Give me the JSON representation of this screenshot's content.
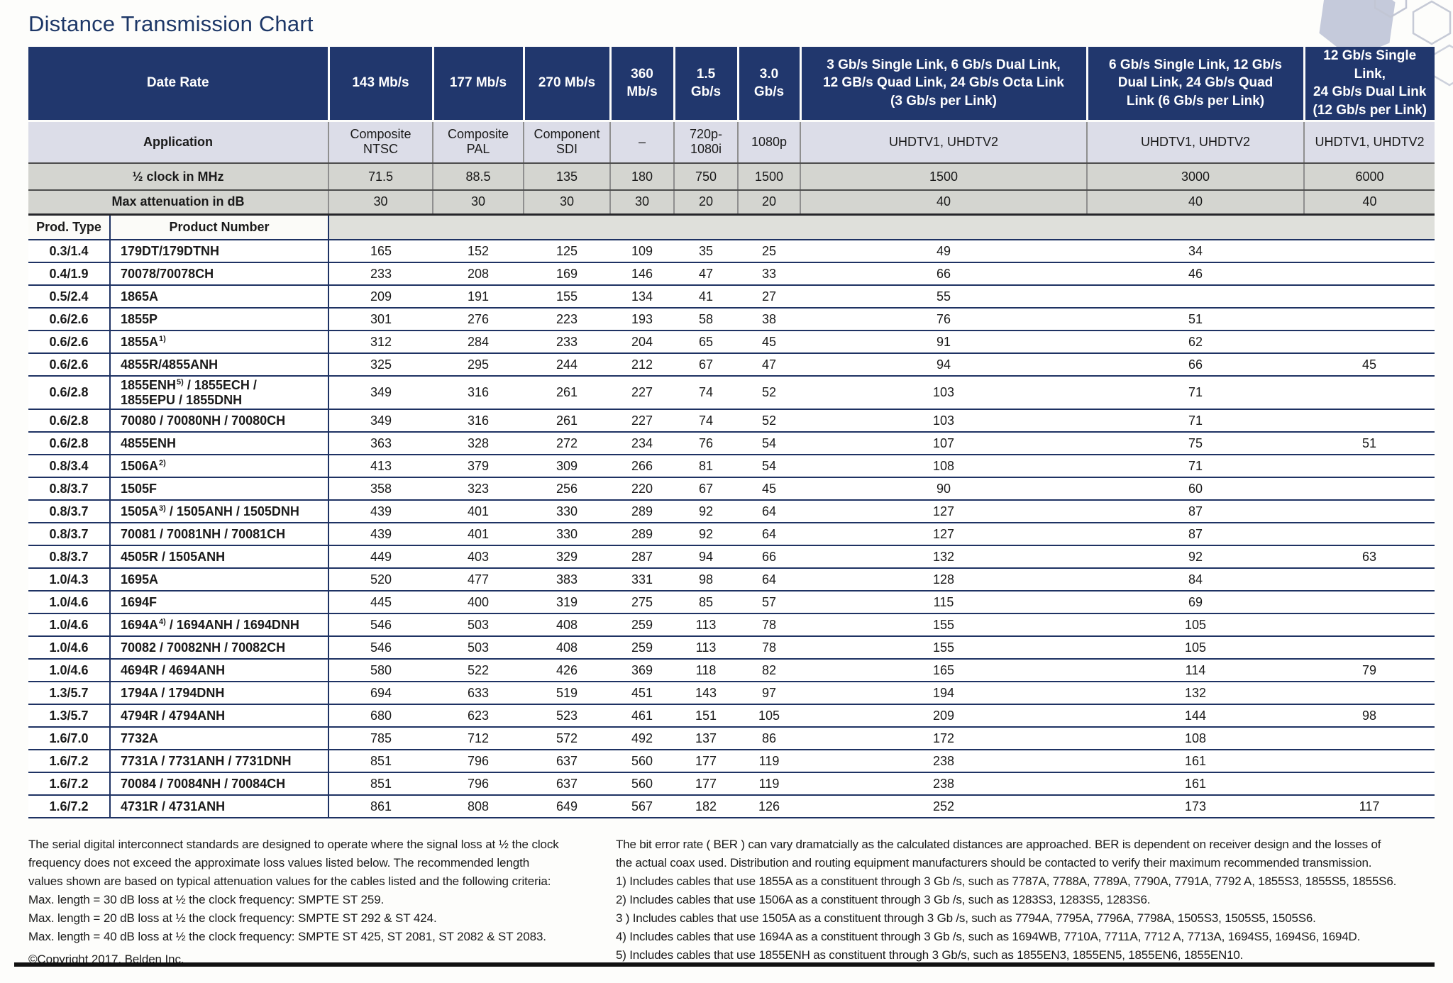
{
  "title": "Distance Transmission Chart",
  "table": {
    "corner_labels": {
      "date_rate": "Date Rate",
      "application": "Application",
      "half_clock": "½ clock in MHz",
      "max_atten": "Max attenuation in dB",
      "prod_type": "Prod. Type",
      "product_number": "Product Number"
    },
    "columns": [
      {
        "rate": "143 Mb/s",
        "application": "Composite\nNTSC",
        "half_clock": "71.5",
        "max_atten": "30"
      },
      {
        "rate": "177 Mb/s",
        "application": "Composite\nPAL",
        "half_clock": "88.5",
        "max_atten": "30"
      },
      {
        "rate": "270 Mb/s",
        "application": "Component\nSDI",
        "half_clock": "135",
        "max_atten": "30"
      },
      {
        "rate": "360\nMb/s",
        "application": "–",
        "half_clock": "180",
        "max_atten": "30"
      },
      {
        "rate": "1.5\nGb/s",
        "application": "720p-\n1080i",
        "half_clock": "750",
        "max_atten": "20"
      },
      {
        "rate": "3.0\nGb/s",
        "application": "1080p",
        "half_clock": "1500",
        "max_atten": "20"
      },
      {
        "rate": "3 Gb/s Single Link, 6 Gb/s Dual Link,\n12 GB/s Quad Link, 24 Gb/s Octa Link\n(3 Gb/s per Link)",
        "application": "UHDTV1, UHDTV2",
        "half_clock": "1500",
        "max_atten": "40"
      },
      {
        "rate": "6 Gb/s Single Link, 12 Gb/s\nDual Link, 24 Gb/s Quad\nLink (6 Gb/s per Link)",
        "application": "UHDTV1, UHDTV2",
        "half_clock": "3000",
        "max_atten": "40"
      },
      {
        "rate": "12 Gb/s Single Link,\n24 Gb/s Dual Link\n(12 Gb/s per Link)",
        "application": "UHDTV1, UHDTV2",
        "half_clock": "6000",
        "max_atten": "40"
      }
    ],
    "rows": [
      {
        "type": "0.3/1.4",
        "product": {
          "main": "179DT/179DTNH",
          "sup": "",
          "tail": ""
        },
        "values": [
          "165",
          "152",
          "125",
          "109",
          "35",
          "25",
          "49",
          "34",
          ""
        ]
      },
      {
        "type": "0.4/1.9",
        "product": {
          "main": "70078/70078CH",
          "sup": "",
          "tail": ""
        },
        "values": [
          "233",
          "208",
          "169",
          "146",
          "47",
          "33",
          "66",
          "46",
          ""
        ]
      },
      {
        "type": "0.5/2.4",
        "product": {
          "main": "1865A",
          "sup": "",
          "tail": ""
        },
        "values": [
          "209",
          "191",
          "155",
          "134",
          "41",
          "27",
          "55",
          "",
          ""
        ]
      },
      {
        "type": "0.6/2.6",
        "product": {
          "main": "1855P",
          "sup": "",
          "tail": ""
        },
        "values": [
          "301",
          "276",
          "223",
          "193",
          "58",
          "38",
          "76",
          "51",
          ""
        ]
      },
      {
        "type": "0.6/2.6",
        "product": {
          "main": "1855A",
          "sup": "1)",
          "tail": ""
        },
        "values": [
          "312",
          "284",
          "233",
          "204",
          "65",
          "45",
          "91",
          "62",
          ""
        ]
      },
      {
        "type": "0.6/2.6",
        "product": {
          "main": "4855R/4855ANH",
          "sup": "",
          "tail": ""
        },
        "values": [
          "325",
          "295",
          "244",
          "212",
          "67",
          "47",
          "94",
          "66",
          "45"
        ]
      },
      {
        "type": "0.6/2.8",
        "product": {
          "main": "1855ENH",
          "sup": "5)",
          "tail": "/ 1855ECH /\n1855EPU / 1855DNH"
        },
        "values": [
          "349",
          "316",
          "261",
          "227",
          "74",
          "52",
          "103",
          "71",
          ""
        ]
      },
      {
        "type": "0.6/2.8",
        "product": {
          "main": "70080 / 70080NH / 70080CH",
          "sup": "",
          "tail": ""
        },
        "values": [
          "349",
          "316",
          "261",
          "227",
          "74",
          "52",
          "103",
          "71",
          ""
        ]
      },
      {
        "type": "0.6/2.8",
        "product": {
          "main": "4855ENH",
          "sup": "",
          "tail": ""
        },
        "values": [
          "363",
          "328",
          "272",
          "234",
          "76",
          "54",
          "107",
          "75",
          "51"
        ]
      },
      {
        "type": "0.8/3.4",
        "product": {
          "main": "1506A",
          "sup": "2)",
          "tail": ""
        },
        "values": [
          "413",
          "379",
          "309",
          "266",
          "81",
          "54",
          "108",
          "71",
          ""
        ]
      },
      {
        "type": "0.8/3.7",
        "product": {
          "main": "1505F",
          "sup": "",
          "tail": ""
        },
        "values": [
          "358",
          "323",
          "256",
          "220",
          "67",
          "45",
          "90",
          "60",
          ""
        ]
      },
      {
        "type": "0.8/3.7",
        "product": {
          "main": "1505A",
          "sup": "3)",
          "tail": "/ 1505ANH / 1505DNH"
        },
        "values": [
          "439",
          "401",
          "330",
          "289",
          "92",
          "64",
          "127",
          "87",
          ""
        ]
      },
      {
        "type": "0.8/3.7",
        "product": {
          "main": "70081 / 70081NH / 70081CH",
          "sup": "",
          "tail": ""
        },
        "values": [
          "439",
          "401",
          "330",
          "289",
          "92",
          "64",
          "127",
          "87",
          ""
        ]
      },
      {
        "type": "0.8/3.7",
        "product": {
          "main": "4505R / 1505ANH",
          "sup": "",
          "tail": ""
        },
        "values": [
          "449",
          "403",
          "329",
          "287",
          "94",
          "66",
          "132",
          "92",
          "63"
        ]
      },
      {
        "type": "1.0/4.3",
        "product": {
          "main": "1695A",
          "sup": "",
          "tail": ""
        },
        "values": [
          "520",
          "477",
          "383",
          "331",
          "98",
          "64",
          "128",
          "84",
          ""
        ]
      },
      {
        "type": "1.0/4.6",
        "product": {
          "main": "1694F",
          "sup": "",
          "tail": ""
        },
        "values": [
          "445",
          "400",
          "319",
          "275",
          "85",
          "57",
          "115",
          "69",
          ""
        ]
      },
      {
        "type": "1.0/4.6",
        "product": {
          "main": "1694A",
          "sup": "4)",
          "tail": "/ 1694ANH / 1694DNH"
        },
        "values": [
          "546",
          "503",
          "408",
          "259",
          "113",
          "78",
          "155",
          "105",
          ""
        ]
      },
      {
        "type": "1.0/4.6",
        "product": {
          "main": "70082 / 70082NH / 70082CH",
          "sup": "",
          "tail": ""
        },
        "values": [
          "546",
          "503",
          "408",
          "259",
          "113",
          "78",
          "155",
          "105",
          ""
        ]
      },
      {
        "type": "1.0/4.6",
        "product": {
          "main": "4694R / 4694ANH",
          "sup": "",
          "tail": ""
        },
        "values": [
          "580",
          "522",
          "426",
          "369",
          "118",
          "82",
          "165",
          "114",
          "79"
        ]
      },
      {
        "type": "1.3/5.7",
        "product": {
          "main": "1794A / 1794DNH",
          "sup": "",
          "tail": ""
        },
        "values": [
          "694",
          "633",
          "519",
          "451",
          "143",
          "97",
          "194",
          "132",
          ""
        ]
      },
      {
        "type": "1.3/5.7",
        "product": {
          "main": "4794R / 4794ANH",
          "sup": "",
          "tail": ""
        },
        "values": [
          "680",
          "623",
          "523",
          "461",
          "151",
          "105",
          "209",
          "144",
          "98"
        ]
      },
      {
        "type": "1.6/7.0",
        "product": {
          "main": "7732A",
          "sup": "",
          "tail": ""
        },
        "values": [
          "785",
          "712",
          "572",
          "492",
          "137",
          "86",
          "172",
          "108",
          ""
        ]
      },
      {
        "type": "1.6/7.2",
        "product": {
          "main": "7731A / 7731ANH / 7731DNH",
          "sup": "",
          "tail": ""
        },
        "values": [
          "851",
          "796",
          "637",
          "560",
          "177",
          "119",
          "238",
          "161",
          ""
        ]
      },
      {
        "type": "1.6/7.2",
        "product": {
          "main": "70084 / 70084NH / 70084CH",
          "sup": "",
          "tail": ""
        },
        "values": [
          "851",
          "796",
          "637",
          "560",
          "177",
          "119",
          "238",
          "161",
          ""
        ]
      },
      {
        "type": "1.6/7.2",
        "product": {
          "main": "4731R / 4731ANH",
          "sup": "",
          "tail": ""
        },
        "values": [
          "861",
          "808",
          "649",
          "567",
          "182",
          "126",
          "252",
          "173",
          "117"
        ]
      }
    ]
  },
  "footer_left": {
    "lines": [
      "The serial digital interconnect standards are designed to operate where the signal loss at ½ the clock",
      "frequency does not exceed the approximate loss values listed below. The recommended length",
      "values shown are based on typical attenuation values for the cables listed and the following criteria:",
      "Max. length = 30 dB loss at ½ the clock frequency: SMPTE ST 259.",
      "Max. length = 20 dB loss at ½ the clock frequency: SMPTE ST 292 & ST 424.",
      "Max. length = 40 dB loss at ½ the clock frequency: SMPTE ST 425, ST 2081, ST 2082 & ST 2083."
    ],
    "copyright": "©Copyright 2017, Belden Inc."
  },
  "footer_right": {
    "lines": [
      "The bit error rate ( BER ) can vary dramatcially as the calculated distances are approached. BER is dependent on receiver design and the losses of",
      "the actual coax used. Distribution and routing equipment manufacturers should be contacted to verify their maximum recommended transmission.",
      "1) Includes cables that use 1855A as a constituent through 3 Gb /s, such as 7787A, 7788A, 7789A, 7790A, 7791A, 7792 A, 1855S3, 1855S5, 1855S6.",
      "2) Includes cables that use 1506A as a constituent through 3 Gb /s, such as 1283S3, 1283S5, 1283S6.",
      "3 ) Includes cables that use 1505A as a constituent through 3 Gb /s, such as 7794A, 7795A, 7796A, 7798A, 1505S3, 1505S5, 1505S6.",
      "4) Includes cables that use 1694A as a constituent through 3 Gb /s, such as 1694WB, 7710A, 7711A, 7712 A, 7713A, 1694S5, 1694S6, 1694D.",
      "5) Includes cables that use 1855ENH as constituent through 3 Gb/s, such as 1855EN3, 1855EN5, 1855EN6, 1855EN10."
    ]
  },
  "colors": {
    "header_navy": "#21376d",
    "application_row_bg": "#dcdde8",
    "metric_row_bg": "#d4d5d0",
    "row_divider": "#1e3263",
    "title_color": "#1d3767",
    "hexagon_fill": "#c5cadb"
  }
}
